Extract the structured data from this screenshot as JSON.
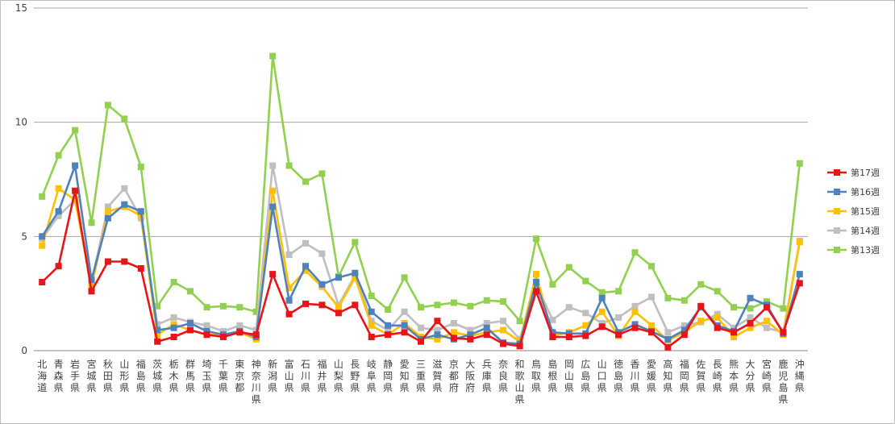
{
  "chart_data": {
    "type": "line",
    "categories": [
      "北海道",
      "青森県",
      "岩手県",
      "宮城県",
      "秋田県",
      "山形県",
      "福島県",
      "茨城県",
      "栃木県",
      "群馬県",
      "埼玉県",
      "千葉県",
      "東京都",
      "神奈川県",
      "新潟県",
      "富山県",
      "石川県",
      "福井県",
      "山梨県",
      "長野県",
      "岐阜県",
      "静岡県",
      "愛知県",
      "三重県",
      "滋賀県",
      "京都府",
      "大阪府",
      "兵庫県",
      "奈良県",
      "和歌山県",
      "鳥取県",
      "島根県",
      "岡山県",
      "広島県",
      "山口県",
      "徳島県",
      "香川県",
      "愛媛県",
      "高知県",
      "福岡県",
      "佐賀県",
      "長崎県",
      "熊本県",
      "大分県",
      "宮崎県",
      "鹿児島県",
      "沖縄県"
    ],
    "yticks": [
      "0",
      "5",
      "10",
      "15"
    ],
    "ylim": [
      0,
      15
    ],
    "grid": true,
    "legend_position": "right",
    "series": [
      {
        "name": "第17週",
        "color": "#e8141a",
        "values": [
          3.0,
          3.7,
          7.0,
          2.6,
          3.9,
          3.9,
          3.6,
          0.4,
          0.6,
          0.9,
          0.7,
          0.6,
          0.8,
          0.7,
          3.35,
          1.6,
          2.05,
          2.0,
          1.65,
          2.0,
          0.6,
          0.7,
          0.8,
          0.4,
          1.3,
          0.55,
          0.5,
          0.7,
          0.3,
          0.2,
          2.6,
          0.6,
          0.6,
          0.65,
          1.05,
          0.7,
          1.0,
          0.8,
          0.15,
          0.7,
          1.95,
          1.0,
          0.8,
          1.2,
          1.9,
          0.8,
          2.95
        ]
      },
      {
        "name": "第16週",
        "color": "#4f81bd",
        "values": [
          5.0,
          6.1,
          8.1,
          3.1,
          5.8,
          6.4,
          6.1,
          0.9,
          1.0,
          1.2,
          0.85,
          0.7,
          0.85,
          0.6,
          6.3,
          2.2,
          3.7,
          2.9,
          3.2,
          3.4,
          1.7,
          1.1,
          1.1,
          0.5,
          0.7,
          0.5,
          0.7,
          1.0,
          0.35,
          0.3,
          3.0,
          0.8,
          0.75,
          0.75,
          2.3,
          0.8,
          1.15,
          0.85,
          0.5,
          0.9,
          1.9,
          1.1,
          0.85,
          2.3,
          2.0,
          0.75,
          3.35
        ]
      },
      {
        "name": "第15週",
        "color": "#ffc000",
        "values": [
          4.6,
          7.1,
          6.6,
          2.8,
          6.1,
          6.3,
          5.9,
          0.7,
          1.15,
          0.9,
          0.7,
          0.7,
          0.8,
          0.5,
          7.0,
          2.75,
          3.5,
          2.8,
          1.9,
          3.2,
          1.1,
          0.7,
          1.2,
          0.6,
          0.5,
          0.8,
          0.65,
          0.8,
          0.9,
          0.4,
          3.35,
          0.65,
          0.8,
          1.1,
          1.7,
          0.65,
          1.7,
          1.1,
          0.45,
          0.8,
          1.3,
          1.45,
          0.6,
          1.0,
          1.3,
          0.7,
          4.75
        ]
      },
      {
        "name": "第14週",
        "color": "#bfbfbf",
        "values": [
          4.9,
          5.9,
          6.6,
          3.0,
          6.3,
          7.1,
          5.8,
          1.15,
          1.45,
          1.25,
          1.1,
          0.85,
          1.1,
          0.9,
          8.1,
          4.2,
          4.7,
          4.25,
          2.0,
          3.3,
          1.3,
          0.9,
          1.7,
          1.0,
          0.9,
          1.2,
          0.9,
          1.2,
          1.3,
          0.5,
          2.9,
          1.35,
          1.9,
          1.65,
          1.2,
          1.45,
          1.95,
          2.35,
          0.8,
          1.1,
          1.25,
          1.6,
          1.0,
          1.45,
          1.0,
          0.8,
          4.8
        ]
      },
      {
        "name": "第13週",
        "color": "#92d050",
        "values": [
          6.75,
          8.55,
          9.65,
          5.6,
          10.75,
          10.15,
          8.05,
          1.95,
          3.0,
          2.6,
          1.9,
          1.95,
          1.9,
          1.7,
          12.9,
          8.1,
          7.4,
          7.75,
          3.25,
          4.75,
          2.4,
          1.8,
          3.2,
          1.9,
          2.0,
          2.1,
          1.95,
          2.2,
          2.15,
          1.3,
          4.9,
          2.9,
          3.65,
          3.05,
          2.55,
          2.6,
          4.3,
          3.7,
          2.3,
          2.2,
          2.9,
          2.6,
          1.9,
          1.85,
          2.15,
          1.85,
          8.2
        ]
      }
    ]
  }
}
